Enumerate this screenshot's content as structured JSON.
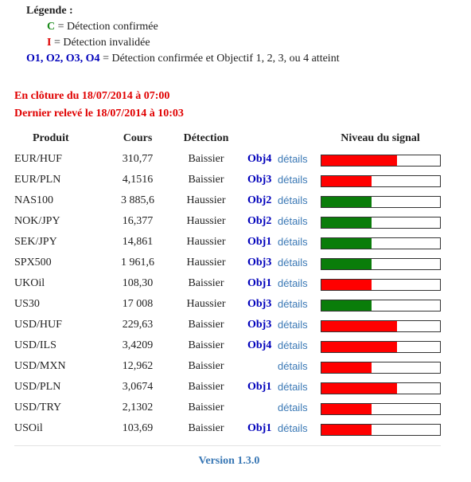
{
  "legend": {
    "title": "Légende :",
    "items": [
      {
        "code": "C",
        "text": " = Détection confirmée"
      },
      {
        "code": "I",
        "text": " = Détection invalidée"
      },
      {
        "code": "O1, O2, O3, O4",
        "text": " = Détection confirmée et Objectif 1, 2, 3, ou 4 atteint"
      }
    ]
  },
  "status": {
    "closing": "En clôture du 18/07/2014 à 07:00",
    "last_reading": "Dernier relevé le 18/07/2014 à 10:03"
  },
  "colors": {
    "bearish": "#ff0000",
    "bullish": "#0a7d0a"
  },
  "table": {
    "headers": {
      "product": "Produit",
      "price": "Cours",
      "detection": "Détection",
      "signal": "Niveau du signal"
    },
    "link_label": "détails",
    "rows": [
      {
        "product": "EUR/HUF",
        "price": "310,77",
        "detection": "Baissier",
        "objective": "Obj4",
        "trend": "bearish",
        "signal": 0.64
      },
      {
        "product": "EUR/PLN",
        "price": "4,1516",
        "detection": "Baissier",
        "objective": "Obj3",
        "trend": "bearish",
        "signal": 0.42
      },
      {
        "product": "NAS100",
        "price": "3 885,6",
        "detection": "Haussier",
        "objective": "Obj2",
        "trend": "bullish",
        "signal": 0.42
      },
      {
        "product": "NOK/JPY",
        "price": "16,377",
        "detection": "Haussier",
        "objective": "Obj2",
        "trend": "bullish",
        "signal": 0.42
      },
      {
        "product": "SEK/JPY",
        "price": "14,861",
        "detection": "Haussier",
        "objective": "Obj1",
        "trend": "bullish",
        "signal": 0.42
      },
      {
        "product": "SPX500",
        "price": "1 961,6",
        "detection": "Haussier",
        "objective": "Obj3",
        "trend": "bullish",
        "signal": 0.42
      },
      {
        "product": "UKOil",
        "price": "108,30",
        "detection": "Baissier",
        "objective": "Obj1",
        "trend": "bearish",
        "signal": 0.42
      },
      {
        "product": "US30",
        "price": "17 008",
        "detection": "Haussier",
        "objective": "Obj3",
        "trend": "bullish",
        "signal": 0.42
      },
      {
        "product": "USD/HUF",
        "price": "229,63",
        "detection": "Baissier",
        "objective": "Obj3",
        "trend": "bearish",
        "signal": 0.64
      },
      {
        "product": "USD/ILS",
        "price": "3,4209",
        "detection": "Baissier",
        "objective": "Obj4",
        "trend": "bearish",
        "signal": 0.64
      },
      {
        "product": "USD/MXN",
        "price": "12,962",
        "detection": "Baissier",
        "objective": "",
        "trend": "bearish",
        "signal": 0.42
      },
      {
        "product": "USD/PLN",
        "price": "3,0674",
        "detection": "Baissier",
        "objective": "Obj1",
        "trend": "bearish",
        "signal": 0.64
      },
      {
        "product": "USD/TRY",
        "price": "2,1302",
        "detection": "Baissier",
        "objective": "",
        "trend": "bearish",
        "signal": 0.42
      },
      {
        "product": "USOil",
        "price": "103,69",
        "detection": "Baissier",
        "objective": "Obj1",
        "trend": "bearish",
        "signal": 0.42
      }
    ]
  },
  "footer": {
    "version": "Version 1.3.0"
  }
}
